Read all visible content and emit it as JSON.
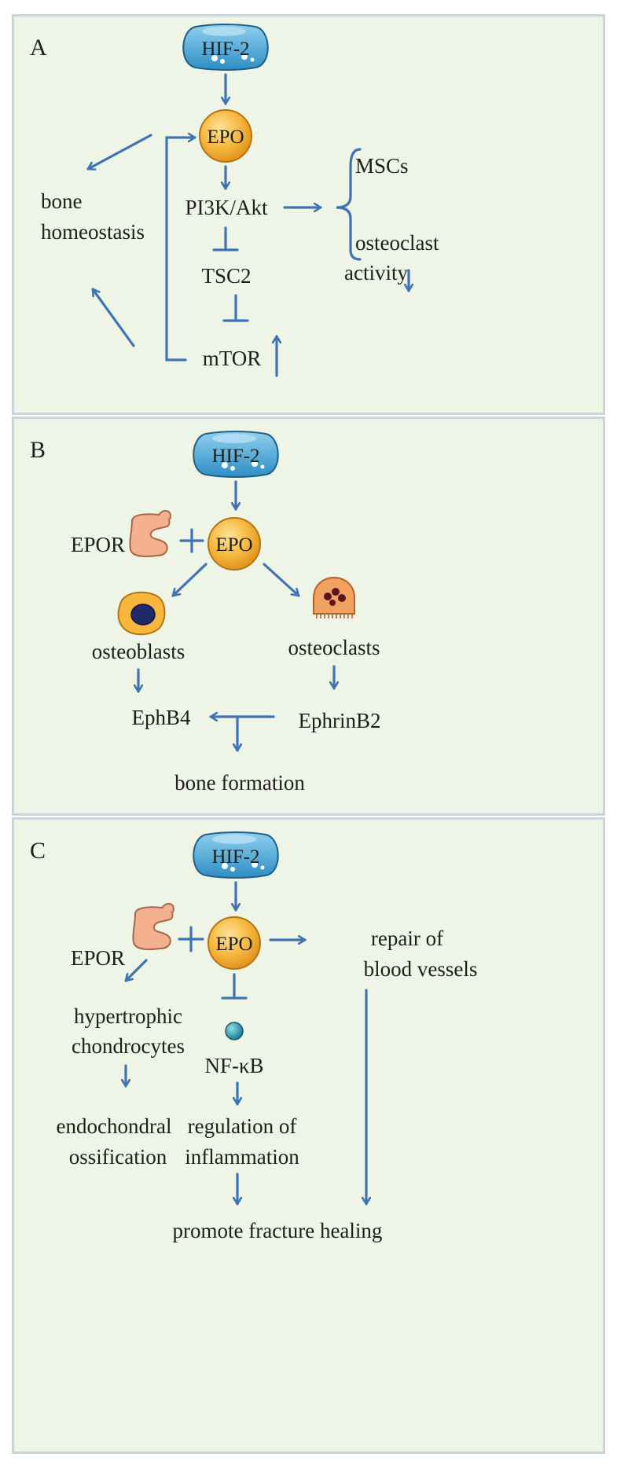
{
  "panels": {
    "a": {
      "letter": "A",
      "hif": "HIF-2",
      "epo": "EPO",
      "pi3k": "PI3K/Akt",
      "tsc2": "TSC2",
      "mtor": "mTOR",
      "bone1": "bone",
      "bone2": "homeostasis",
      "mscs": "MSCs",
      "osteo1": "osteoclast",
      "osteo2": "activity"
    },
    "b": {
      "letter": "B",
      "hif": "HIF-2",
      "epo": "EPO",
      "epor": "EPOR",
      "osteoblasts": "osteoblasts",
      "osteoclasts": "osteoclasts",
      "ephb4": "EphB4",
      "ephrinb2": "EphrinB2",
      "bone_formation": "bone formation"
    },
    "c": {
      "letter": "C",
      "hif": "HIF-2",
      "epo": "EPO",
      "epor": "EPOR",
      "repair1": "repair of",
      "repair2": "blood vessels",
      "hyper1": "hypertrophic",
      "hyper2": "chondrocytes",
      "nfkb": "NF-κB",
      "endo1": "endochondral",
      "endo2": "ossification",
      "reg1": "regulation of",
      "reg2": "inflammation",
      "promote": "promote fracture healing"
    }
  },
  "colors": {
    "arrow": "#3f73b4",
    "panel_bg": "#eef4e6",
    "panel_border": "#c9d3dc",
    "hif_fill": "#5ab2dc",
    "epo_fill": "#f6b73c",
    "receptor_fill": "#f3b18f",
    "nfkb_fill": "#2d9bb0"
  },
  "icons": [
    "hif-2-blob-icon",
    "epo-circle-icon",
    "epor-receptor-icon",
    "osteoblast-cell-icon",
    "osteoclast-cell-icon",
    "nfkb-sphere-icon"
  ]
}
